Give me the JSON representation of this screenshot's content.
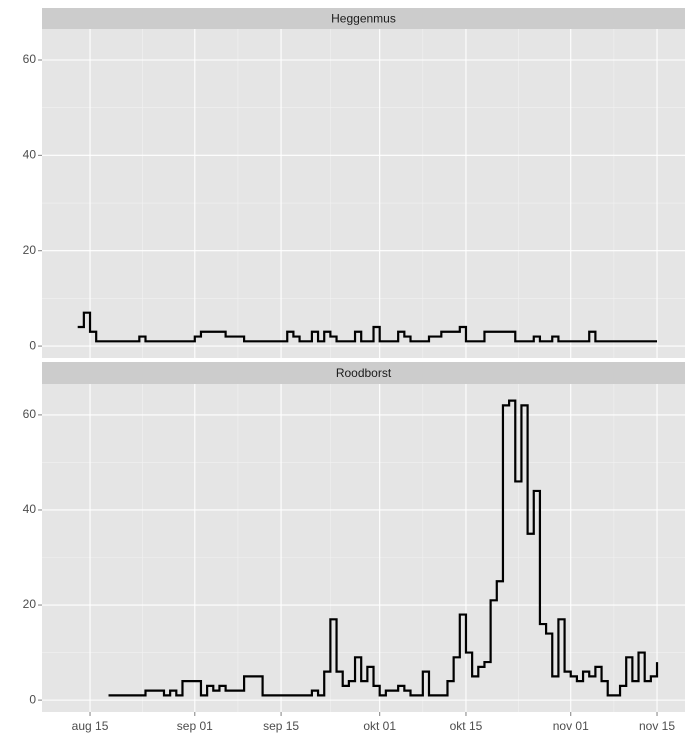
{
  "chart_data": [
    {
      "type": "line",
      "title": "Heggenmus",
      "step": true,
      "grid": true,
      "x": [
        "aug 13",
        "aug 14",
        "aug 15",
        "aug 16",
        "aug 17",
        "aug 18",
        "aug 19",
        "aug 20",
        "aug 21",
        "aug 22",
        "aug 23",
        "aug 24",
        "aug 25",
        "aug 26",
        "aug 27",
        "aug 28",
        "aug 29",
        "aug 30",
        "aug 31",
        "sep 01",
        "sep 02",
        "sep 03",
        "sep 04",
        "sep 05",
        "sep 06",
        "sep 07",
        "sep 08",
        "sep 09",
        "sep 10",
        "sep 11",
        "sep 12",
        "sep 13",
        "sep 14",
        "sep 15",
        "sep 16",
        "sep 17",
        "sep 18",
        "sep 19",
        "sep 20",
        "sep 21",
        "sep 22",
        "sep 23",
        "sep 24",
        "sep 25",
        "sep 26",
        "sep 27",
        "sep 28",
        "sep 29",
        "sep 30",
        "okt 01",
        "okt 02",
        "okt 03",
        "okt 04",
        "okt 05",
        "okt 06",
        "okt 07",
        "okt 08",
        "okt 09",
        "okt 10",
        "okt 11",
        "okt 12",
        "okt 13",
        "okt 14",
        "okt 15",
        "okt 16",
        "okt 17",
        "okt 18",
        "okt 19",
        "okt 20",
        "okt 21",
        "okt 22",
        "okt 23",
        "okt 24",
        "okt 25",
        "okt 26",
        "okt 27",
        "okt 28",
        "okt 29",
        "okt 30",
        "okt 31",
        "nov 01",
        "nov 02",
        "nov 03",
        "nov 04",
        "nov 05",
        "nov 06",
        "nov 07",
        "nov 08",
        "nov 09",
        "nov 10",
        "nov 11",
        "nov 12",
        "nov 13",
        "nov 14",
        "nov 15"
      ],
      "ylim": [
        -2.5,
        66.5
      ],
      "yticks": [
        0,
        20,
        40,
        60
      ],
      "series": [
        {
          "color": "#000000",
          "values": [
            4,
            7,
            3,
            1,
            1,
            1,
            1,
            1,
            1,
            1,
            2,
            1,
            1,
            1,
            1,
            1,
            1,
            1,
            1,
            2,
            3,
            3,
            3,
            3,
            2,
            2,
            2,
            1,
            1,
            1,
            1,
            1,
            1,
            1,
            3,
            2,
            1,
            1,
            3,
            1,
            3,
            2,
            1,
            1,
            1,
            3,
            1,
            1,
            4,
            1,
            1,
            1,
            3,
            2,
            1,
            1,
            1,
            2,
            2,
            3,
            3,
            3,
            4,
            1,
            1,
            1,
            3,
            3,
            3,
            3,
            3,
            1,
            1,
            1,
            2,
            1,
            1,
            2,
            1,
            1,
            1,
            1,
            1,
            3,
            1,
            1,
            1,
            1,
            1,
            1,
            1,
            1,
            1,
            1,
            1
          ]
        }
      ]
    },
    {
      "type": "line",
      "title": "Roodborst",
      "step": true,
      "grid": true,
      "x": [
        "aug 13",
        "aug 14",
        "aug 15",
        "aug 16",
        "aug 17",
        "aug 18",
        "aug 19",
        "aug 20",
        "aug 21",
        "aug 22",
        "aug 23",
        "aug 24",
        "aug 25",
        "aug 26",
        "aug 27",
        "aug 28",
        "aug 29",
        "aug 30",
        "aug 31",
        "sep 01",
        "sep 02",
        "sep 03",
        "sep 04",
        "sep 05",
        "sep 06",
        "sep 07",
        "sep 08",
        "sep 09",
        "sep 10",
        "sep 11",
        "sep 12",
        "sep 13",
        "sep 14",
        "sep 15",
        "sep 16",
        "sep 17",
        "sep 18",
        "sep 19",
        "sep 20",
        "sep 21",
        "sep 22",
        "sep 23",
        "sep 24",
        "sep 25",
        "sep 26",
        "sep 27",
        "sep 28",
        "sep 29",
        "sep 30",
        "okt 01",
        "okt 02",
        "okt 03",
        "okt 04",
        "okt 05",
        "okt 06",
        "okt 07",
        "okt 08",
        "okt 09",
        "okt 10",
        "okt 11",
        "okt 12",
        "okt 13",
        "okt 14",
        "okt 15",
        "okt 16",
        "okt 17",
        "okt 18",
        "okt 19",
        "okt 20",
        "okt 21",
        "okt 22",
        "okt 23",
        "okt 24",
        "okt 25",
        "okt 26",
        "okt 27",
        "okt 28",
        "okt 29",
        "okt 30",
        "okt 31",
        "nov 01",
        "nov 02",
        "nov 03",
        "nov 04",
        "nov 05",
        "nov 06",
        "nov 07",
        "nov 08",
        "nov 09",
        "nov 10",
        "nov 11",
        "nov 12",
        "nov 13",
        "nov 14",
        "nov 15"
      ],
      "xticks": [
        "aug 15",
        "sep 01",
        "sep 15",
        "okt 01",
        "okt 15",
        "nov 01",
        "nov 15"
      ],
      "ylim": [
        -2.5,
        66.5
      ],
      "yticks": [
        0,
        20,
        40,
        60
      ],
      "series": [
        {
          "color": "#000000",
          "values": [
            null,
            null,
            null,
            null,
            null,
            1,
            1,
            1,
            1,
            1,
            1,
            2,
            2,
            2,
            1,
            2,
            1,
            4,
            4,
            4,
            1,
            3,
            2,
            3,
            2,
            2,
            2,
            5,
            5,
            5,
            1,
            1,
            1,
            1,
            1,
            1,
            1,
            1,
            2,
            1,
            6,
            17,
            6,
            3,
            4,
            9,
            4,
            7,
            3,
            1,
            2,
            2,
            3,
            2,
            1,
            1,
            6,
            1,
            1,
            1,
            4,
            9,
            18,
            10,
            5,
            7,
            8,
            21,
            25,
            62,
            63,
            46,
            62,
            35,
            44,
            16,
            14,
            5,
            17,
            6,
            5,
            4,
            6,
            5,
            7,
            4,
            1,
            1,
            3,
            9,
            4,
            10,
            4,
            5,
            8
          ]
        }
      ]
    }
  ]
}
